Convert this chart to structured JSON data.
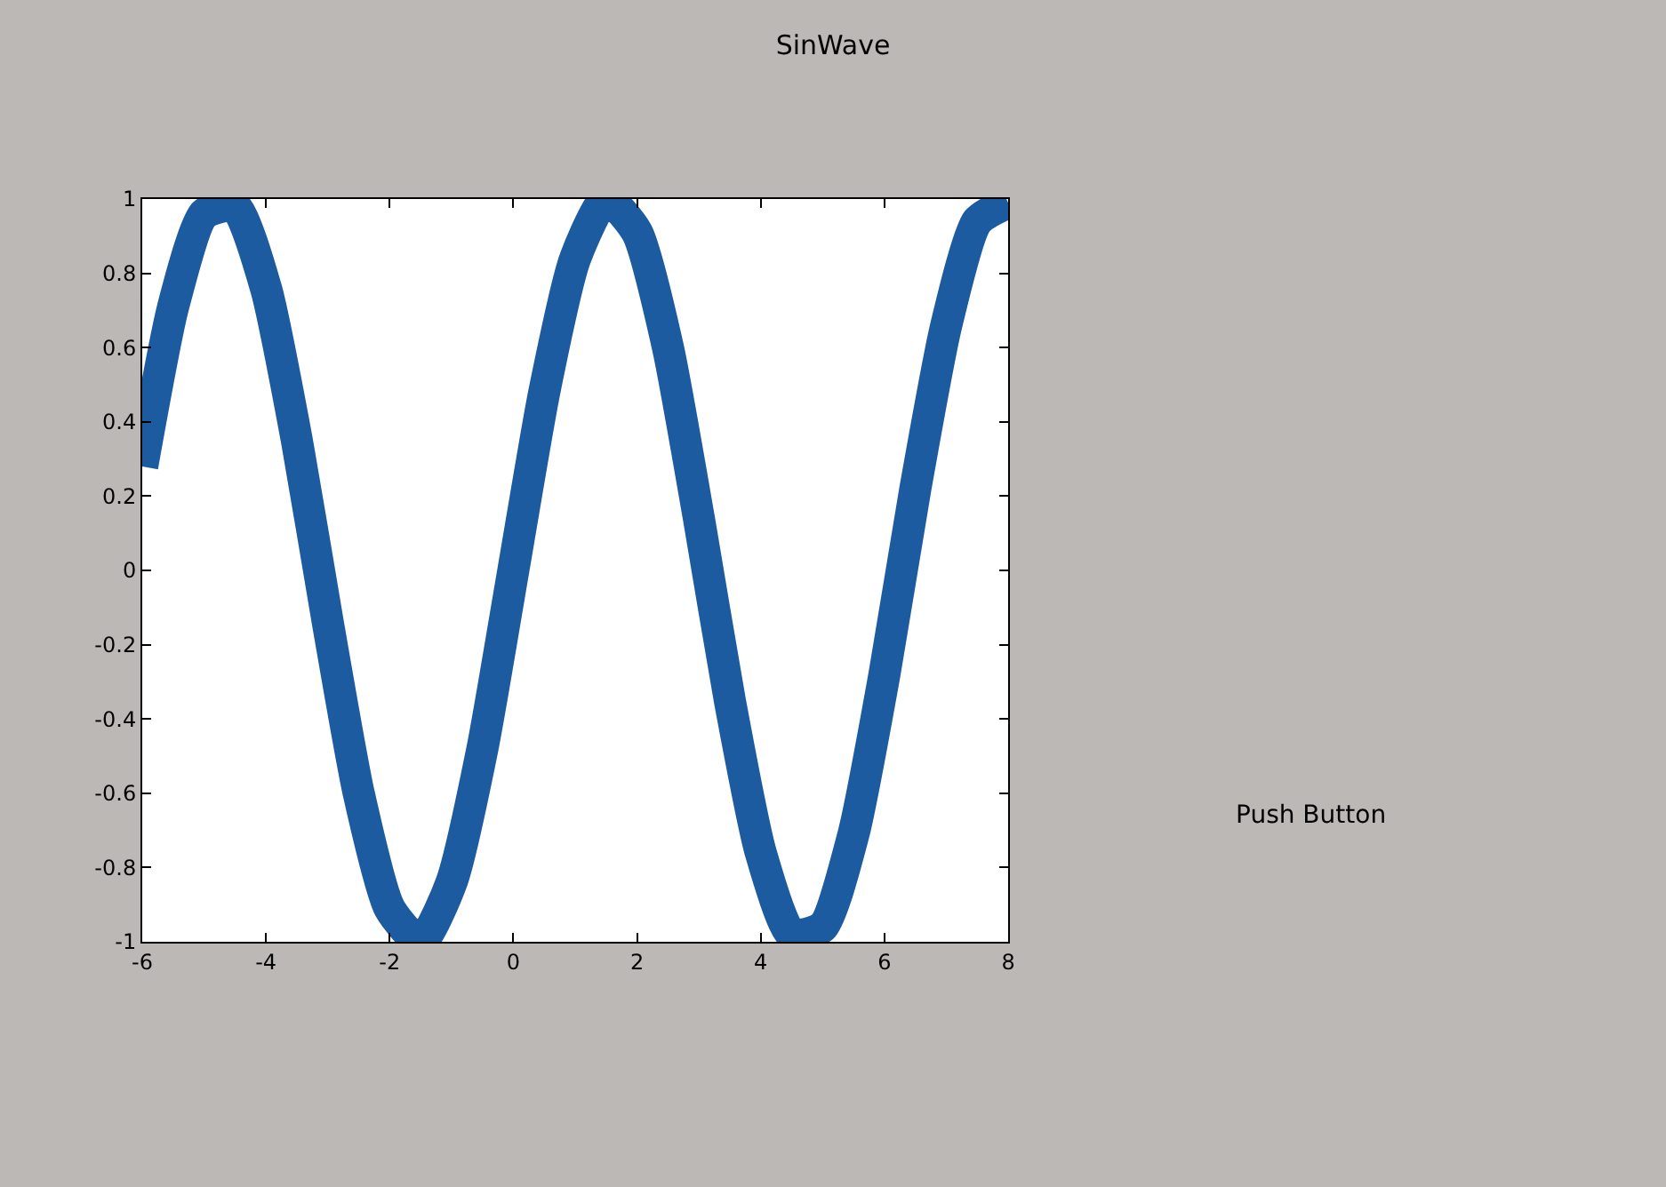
{
  "chart_data": {
    "type": "line",
    "title": "SinWave",
    "x": [
      -6,
      -5.5,
      -5,
      -4.5,
      -4,
      -3.5,
      -3,
      -2.5,
      -2,
      -1.5,
      -1,
      -0.5,
      0,
      0.5,
      1,
      1.5,
      2,
      2.5,
      3,
      3.5,
      4,
      4.5,
      5,
      5.5,
      6,
      6.5,
      7,
      7.5,
      8
    ],
    "series": [
      {
        "color": "#1c5ba0",
        "values": [
          0.28,
          0.71,
          0.96,
          0.98,
          0.76,
          0.35,
          -0.14,
          -0.6,
          -0.91,
          -1.0,
          -0.84,
          -0.48,
          0,
          0.48,
          0.84,
          1.0,
          0.91,
          0.6,
          0.14,
          -0.35,
          -0.76,
          -0.98,
          -0.96,
          -0.71,
          -0.28,
          0.22,
          0.66,
          0.94,
          0.99
        ]
      }
    ],
    "xlim": [
      -6,
      8
    ],
    "xticks": [
      -6,
      -4,
      -2,
      0,
      2,
      4,
      6,
      8
    ],
    "ylim": [
      -1,
      1
    ],
    "yticks": [
      -1,
      -0.8,
      -0.6,
      -0.4,
      -0.2,
      0,
      0.2,
      0.4,
      0.6,
      0.8,
      1
    ],
    "marker": "none",
    "line_style": "solid",
    "annotations": [
      "Push Button"
    ]
  }
}
